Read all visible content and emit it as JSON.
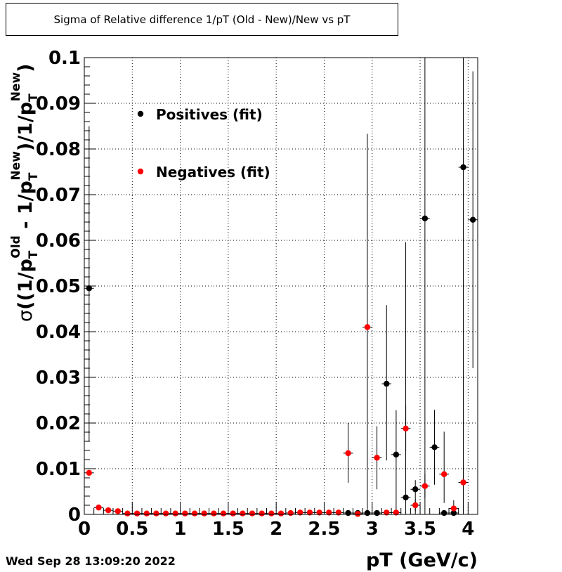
{
  "title": "Sigma of Relative difference 1/pT (Old - New)/New vs pT",
  "datestamp": "Wed Sep 28 13:09:20 2022",
  "chart_data": {
    "type": "scatter",
    "xlabel": "pT (GeV/c)",
    "ylabel_parts": {
      "sigma": "σ",
      "open": "((1/p",
      "sub": "T",
      "old": "Old",
      "minus": " - 1/p",
      "new": "New",
      "close": ")/1/p",
      "end": ")"
    },
    "xlim": [
      0,
      4.1
    ],
    "ylim": [
      0,
      0.1
    ],
    "x_ticks": [
      0,
      0.5,
      1,
      1.5,
      2,
      2.5,
      3,
      3.5,
      4
    ],
    "x_tick_labels": [
      "0",
      "0.5",
      "1",
      "1.5",
      "2",
      "2.5",
      "3",
      "3.5",
      "4"
    ],
    "y_ticks": [
      0,
      0.01,
      0.02,
      0.03,
      0.04,
      0.05,
      0.06,
      0.07,
      0.08,
      0.09,
      0.1
    ],
    "y_tick_labels": [
      "0",
      "0.01",
      "0.02",
      "0.03",
      "0.04",
      "0.05",
      "0.06",
      "0.07",
      "0.08",
      "0.09",
      "0.1"
    ],
    "grid": true,
    "legend_position": "top-left",
    "series": [
      {
        "name": "Positives (fit)",
        "color": "#000000",
        "points": [
          {
            "x": 0.05,
            "y": 0.0495,
            "ylo": 0.016,
            "yhi": 0.085
          },
          {
            "x": 2.75,
            "y": 0.0003,
            "ylo": 0.0001,
            "yhi": 0.0005
          },
          {
            "x": 2.85,
            "y": 0.0003,
            "ylo": 0.0001,
            "yhi": 0.0005
          },
          {
            "x": 2.95,
            "y": 0.0003,
            "ylo": 0.0001,
            "yhi": 0.0005
          },
          {
            "x": 3.05,
            "y": 0.0003,
            "ylo": 0.0001,
            "yhi": 0.0005
          },
          {
            "x": 3.15,
            "y": 0.0286,
            "ylo": 0.0118,
            "yhi": 0.0458
          },
          {
            "x": 3.25,
            "y": 0.0131,
            "ylo": 0.0,
            "yhi": 0.0228
          },
          {
            "x": 3.35,
            "y": 0.0037,
            "ylo": 0.0,
            "yhi": 0.0596
          },
          {
            "x": 3.45,
            "y": 0.0055,
            "ylo": 0.0,
            "yhi": 0.0075
          },
          {
            "x": 3.55,
            "y": 0.0648,
            "ylo": 0.0,
            "yhi": 0.1
          },
          {
            "x": 3.65,
            "y": 0.0147,
            "ylo": 0.0065,
            "yhi": 0.0229
          },
          {
            "x": 3.75,
            "y": 0.0003,
            "ylo": 0.0001,
            "yhi": 0.0005
          },
          {
            "x": 3.85,
            "y": 0.0003,
            "ylo": 0.0001,
            "yhi": 0.0005
          },
          {
            "x": 3.95,
            "y": 0.076,
            "ylo": 0.0,
            "yhi": 0.1
          },
          {
            "x": 4.05,
            "y": 0.0645,
            "ylo": 0.032,
            "yhi": 0.097
          }
        ]
      },
      {
        "name": "Negatives (fit)",
        "color": "#ff0000",
        "points": [
          {
            "x": 0.05,
            "y": 0.0091,
            "ylo": 0.0089,
            "yhi": 0.0093
          },
          {
            "x": 0.15,
            "y": 0.0015,
            "ylo": 0.0014,
            "yhi": 0.0016
          },
          {
            "x": 0.25,
            "y": 0.0009,
            "ylo": 0.0008,
            "yhi": 0.001
          },
          {
            "x": 0.35,
            "y": 0.0007,
            "ylo": 0.0006,
            "yhi": 0.0008
          },
          {
            "x": 0.45,
            "y": 0.0002,
            "ylo": 0.0001,
            "yhi": 0.0003
          },
          {
            "x": 0.55,
            "y": 0.0002,
            "ylo": 0.0001,
            "yhi": 0.0003
          },
          {
            "x": 0.65,
            "y": 0.0002,
            "ylo": 0.0001,
            "yhi": 0.0003
          },
          {
            "x": 0.75,
            "y": 0.0002,
            "ylo": 0.0001,
            "yhi": 0.0003
          },
          {
            "x": 0.85,
            "y": 0.0002,
            "ylo": 0.0001,
            "yhi": 0.0003
          },
          {
            "x": 0.95,
            "y": 0.0002,
            "ylo": 0.0001,
            "yhi": 0.0003
          },
          {
            "x": 1.05,
            "y": 0.0002,
            "ylo": 0.0001,
            "yhi": 0.0003
          },
          {
            "x": 1.15,
            "y": 0.0002,
            "ylo": 0.0001,
            "yhi": 0.0003
          },
          {
            "x": 1.25,
            "y": 0.0002,
            "ylo": 0.0001,
            "yhi": 0.0003
          },
          {
            "x": 1.35,
            "y": 0.0002,
            "ylo": 0.0001,
            "yhi": 0.0003
          },
          {
            "x": 1.45,
            "y": 0.0002,
            "ylo": 0.0001,
            "yhi": 0.0003
          },
          {
            "x": 1.55,
            "y": 0.0002,
            "ylo": 0.0001,
            "yhi": 0.0003
          },
          {
            "x": 1.65,
            "y": 0.0002,
            "ylo": 0.0001,
            "yhi": 0.0003
          },
          {
            "x": 1.75,
            "y": 0.0002,
            "ylo": 0.0001,
            "yhi": 0.0003
          },
          {
            "x": 1.85,
            "y": 0.0002,
            "ylo": 0.0001,
            "yhi": 0.0003
          },
          {
            "x": 1.95,
            "y": 0.0002,
            "ylo": 0.0001,
            "yhi": 0.0003
          },
          {
            "x": 2.05,
            "y": 0.0002,
            "ylo": 0.0001,
            "yhi": 0.0003
          },
          {
            "x": 2.15,
            "y": 0.0003,
            "ylo": 0.0002,
            "yhi": 0.0004
          },
          {
            "x": 2.25,
            "y": 0.0004,
            "ylo": 0.0003,
            "yhi": 0.0005
          },
          {
            "x": 2.35,
            "y": 0.0004,
            "ylo": 0.0003,
            "yhi": 0.0005
          },
          {
            "x": 2.45,
            "y": 0.0004,
            "ylo": 0.0003,
            "yhi": 0.0005
          },
          {
            "x": 2.55,
            "y": 0.0004,
            "ylo": 0.0003,
            "yhi": 0.0005
          },
          {
            "x": 2.65,
            "y": 0.0004,
            "ylo": 0.0003,
            "yhi": 0.0005
          },
          {
            "x": 2.75,
            "y": 0.0134,
            "ylo": 0.0069,
            "yhi": 0.02
          },
          {
            "x": 2.85,
            "y": 0.0001,
            "ylo": 0.0,
            "yhi": 0.0003
          },
          {
            "x": 2.95,
            "y": 0.041,
            "ylo": 0.0,
            "yhi": 0.0833
          },
          {
            "x": 3.05,
            "y": 0.0124,
            "ylo": 0.0055,
            "yhi": 0.0193
          },
          {
            "x": 3.15,
            "y": 0.0004,
            "ylo": 0.0003,
            "yhi": 0.0005
          },
          {
            "x": 3.25,
            "y": 0.0004,
            "ylo": 0.0003,
            "yhi": 0.0005
          },
          {
            "x": 3.35,
            "y": 0.0188,
            "ylo": 0.0138,
            "yhi": 0.0238
          },
          {
            "x": 3.45,
            "y": 0.002,
            "ylo": 0.0007,
            "yhi": 0.0033
          },
          {
            "x": 3.55,
            "y": 0.0062,
            "ylo": 0.0036,
            "yhi": 0.0088
          },
          {
            "x": 3.75,
            "y": 0.0088,
            "ylo": 0.0025,
            "yhi": 0.0181
          },
          {
            "x": 3.85,
            "y": 0.0013,
            "ylo": 0.0,
            "yhi": 0.0031
          },
          {
            "x": 3.95,
            "y": 0.007,
            "ylo": 0.0,
            "yhi": 0.011
          }
        ]
      }
    ]
  }
}
